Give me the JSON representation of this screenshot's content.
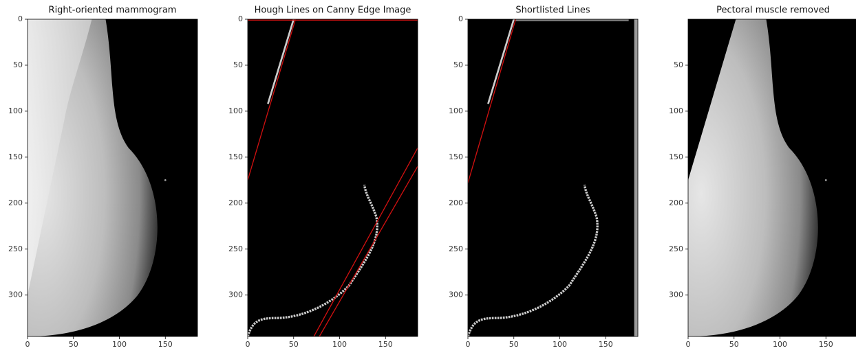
{
  "chart_data": [
    {
      "type": "image",
      "title": "Right-oriented mammogram",
      "xlim": [
        0,
        185
      ],
      "ylim": [
        345,
        0
      ],
      "xticks": [
        0,
        50,
        100,
        150
      ],
      "yticks": [
        0,
        50,
        100,
        150,
        200,
        250,
        300
      ]
    },
    {
      "type": "image",
      "title": "Hough Lines on Canny Edge Image",
      "xlim": [
        0,
        185
      ],
      "ylim": [
        345,
        0
      ],
      "xticks": [
        0,
        50,
        100,
        150
      ],
      "yticks": [
        0,
        50,
        100,
        150,
        200,
        250,
        300
      ]
    },
    {
      "type": "image",
      "title": "Shortlisted Lines",
      "xlim": [
        0,
        185
      ],
      "ylim": [
        345,
        0
      ],
      "xticks": [
        0,
        50,
        100,
        150
      ],
      "yticks": [
        0,
        50,
        100,
        150,
        200,
        250,
        300
      ]
    },
    {
      "type": "image",
      "title": "Pectoral muscle removed",
      "xlim": [
        0,
        185
      ],
      "ylim": [
        345,
        0
      ],
      "xticks": [
        0,
        50,
        100,
        150
      ],
      "yticks": [
        50,
        100,
        150,
        200,
        250,
        300
      ]
    }
  ]
}
